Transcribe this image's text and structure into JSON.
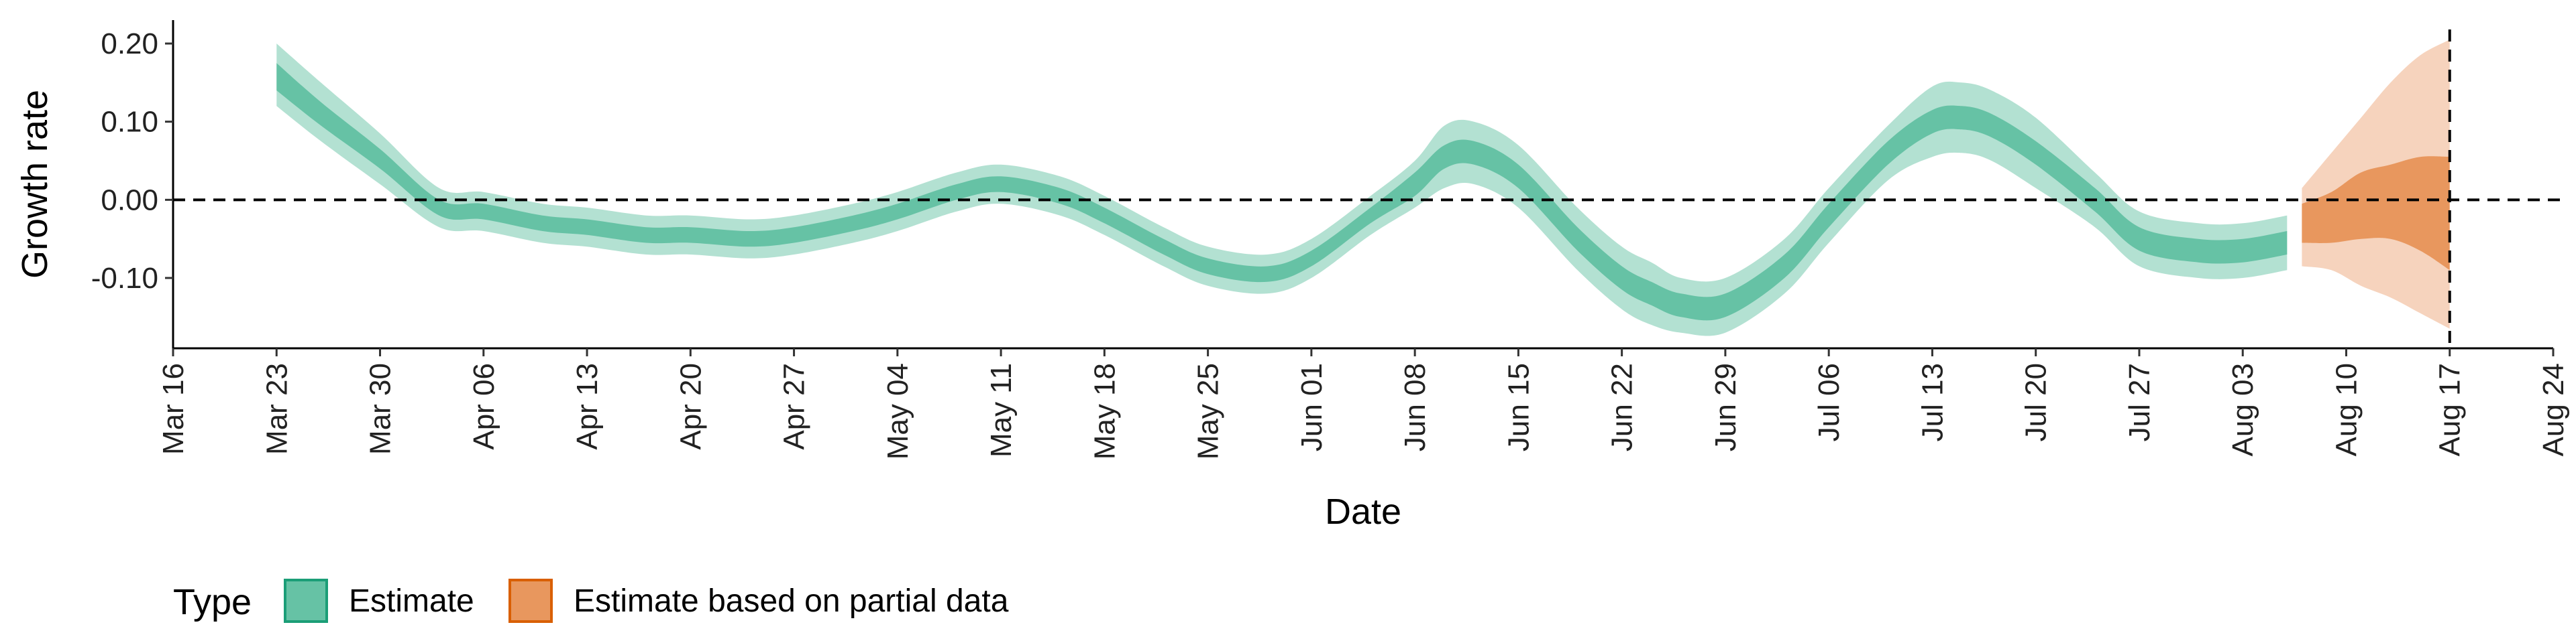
{
  "chart_data": {
    "type": "area",
    "title": "",
    "xlabel": "Date",
    "ylabel": "Growth rate",
    "xlim": [
      "2020-03-16",
      "2020-08-24"
    ],
    "ylim": [
      -0.19,
      0.23
    ],
    "x_ticks": [
      "Mar 16",
      "Mar 23",
      "Mar 30",
      "Apr 06",
      "Apr 13",
      "Apr 20",
      "Apr 27",
      "May 04",
      "May 11",
      "May 18",
      "May 25",
      "Jun 01",
      "Jun 08",
      "Jun 15",
      "Jun 22",
      "Jun 29",
      "Jul 06",
      "Jul 13",
      "Jul 20",
      "Jul 27",
      "Aug 03",
      "Aug 10",
      "Aug 17",
      "Aug 24"
    ],
    "x_tick_dates": [
      "2020-03-16",
      "2020-03-23",
      "2020-03-30",
      "2020-04-06",
      "2020-04-13",
      "2020-04-20",
      "2020-04-27",
      "2020-05-04",
      "2020-05-11",
      "2020-05-18",
      "2020-05-25",
      "2020-06-01",
      "2020-06-08",
      "2020-06-15",
      "2020-06-22",
      "2020-06-29",
      "2020-07-06",
      "2020-07-13",
      "2020-07-20",
      "2020-07-27",
      "2020-08-03",
      "2020-08-10",
      "2020-08-17",
      "2020-08-24"
    ],
    "y_ticks": [
      0.2,
      0.1,
      0.0,
      -0.1
    ],
    "y_tick_labels": [
      "0.20",
      "0.10",
      "0.00",
      "-0.10"
    ],
    "reference_hline": 0.0,
    "reference_vline": "2020-08-17",
    "grid": false,
    "legend": {
      "title": "Type",
      "position": "bottom-left",
      "entries": [
        "Estimate",
        "Estimate based on partial data"
      ]
    },
    "series": [
      {
        "name": "Estimate",
        "color_inner": "#66c2a5",
        "color_outer": "#b3e1d2",
        "border_color": "#1b9e77",
        "x": [
          "2020-03-23",
          "2020-03-26",
          "2020-03-30",
          "2020-04-03",
          "2020-04-06",
          "2020-04-10",
          "2020-04-13",
          "2020-04-17",
          "2020-04-20",
          "2020-04-24",
          "2020-04-27",
          "2020-05-01",
          "2020-05-04",
          "2020-05-08",
          "2020-05-11",
          "2020-05-15",
          "2020-05-18",
          "2020-05-22",
          "2020-05-25",
          "2020-05-29",
          "2020-06-01",
          "2020-06-05",
          "2020-06-08",
          "2020-06-10",
          "2020-06-12",
          "2020-06-15",
          "2020-06-19",
          "2020-06-22",
          "2020-06-24",
          "2020-06-26",
          "2020-06-29",
          "2020-07-03",
          "2020-07-06",
          "2020-07-10",
          "2020-07-13",
          "2020-07-15",
          "2020-07-17",
          "2020-07-20",
          "2020-07-24",
          "2020-07-27",
          "2020-07-31",
          "2020-08-03",
          "2020-08-06"
        ],
        "y": [
          0.16,
          0.11,
          0.05,
          -0.01,
          -0.015,
          -0.03,
          -0.035,
          -0.045,
          -0.045,
          -0.05,
          -0.045,
          -0.03,
          -0.015,
          0.01,
          0.02,
          0.005,
          -0.02,
          -0.06,
          -0.085,
          -0.095,
          -0.075,
          -0.02,
          0.02,
          0.055,
          0.06,
          0.03,
          -0.05,
          -0.1,
          -0.12,
          -0.135,
          -0.135,
          -0.085,
          -0.02,
          0.06,
          0.1,
          0.105,
          0.095,
          0.06,
          0.0,
          -0.05,
          -0.065,
          -0.065,
          -0.055
        ],
        "band_50": [
          [
            0.14,
            0.175
          ],
          [
            0.095,
            0.125
          ],
          [
            0.04,
            0.065
          ],
          [
            -0.02,
            0.0
          ],
          [
            -0.025,
            -0.005
          ],
          [
            -0.04,
            -0.02
          ],
          [
            -0.045,
            -0.025
          ],
          [
            -0.055,
            -0.035
          ],
          [
            -0.055,
            -0.035
          ],
          [
            -0.06,
            -0.04
          ],
          [
            -0.055,
            -0.035
          ],
          [
            -0.04,
            -0.02
          ],
          [
            -0.025,
            -0.005
          ],
          [
            0.0,
            0.02
          ],
          [
            0.01,
            0.03
          ],
          [
            -0.005,
            0.015
          ],
          [
            -0.03,
            -0.01
          ],
          [
            -0.07,
            -0.05
          ],
          [
            -0.095,
            -0.075
          ],
          [
            -0.105,
            -0.085
          ],
          [
            -0.085,
            -0.065
          ],
          [
            -0.03,
            -0.01
          ],
          [
            0.005,
            0.035
          ],
          [
            0.04,
            0.07
          ],
          [
            0.045,
            0.075
          ],
          [
            0.015,
            0.045
          ],
          [
            -0.065,
            -0.035
          ],
          [
            -0.115,
            -0.085
          ],
          [
            -0.135,
            -0.105
          ],
          [
            -0.15,
            -0.12
          ],
          [
            -0.15,
            -0.12
          ],
          [
            -0.1,
            -0.07
          ],
          [
            -0.035,
            -0.005
          ],
          [
            0.045,
            0.075
          ],
          [
            0.085,
            0.115
          ],
          [
            0.09,
            0.12
          ],
          [
            0.08,
            0.11
          ],
          [
            0.045,
            0.075
          ],
          [
            -0.015,
            0.015
          ],
          [
            -0.065,
            -0.035
          ],
          [
            -0.08,
            -0.05
          ],
          [
            -0.08,
            -0.05
          ],
          [
            -0.07,
            -0.04
          ]
        ],
        "band_90": [
          [
            0.12,
            0.2
          ],
          [
            0.075,
            0.15
          ],
          [
            0.02,
            0.085
          ],
          [
            -0.035,
            0.015
          ],
          [
            -0.04,
            0.01
          ],
          [
            -0.055,
            -0.005
          ],
          [
            -0.06,
            -0.01
          ],
          [
            -0.07,
            -0.02
          ],
          [
            -0.07,
            -0.02
          ],
          [
            -0.075,
            -0.025
          ],
          [
            -0.07,
            -0.02
          ],
          [
            -0.055,
            -0.005
          ],
          [
            -0.04,
            0.01
          ],
          [
            -0.015,
            0.035
          ],
          [
            -0.005,
            0.045
          ],
          [
            -0.02,
            0.03
          ],
          [
            -0.045,
            0.005
          ],
          [
            -0.085,
            -0.035
          ],
          [
            -0.11,
            -0.06
          ],
          [
            -0.12,
            -0.07
          ],
          [
            -0.1,
            -0.05
          ],
          [
            -0.045,
            0.005
          ],
          [
            -0.01,
            0.05
          ],
          [
            0.015,
            0.095
          ],
          [
            0.02,
            0.1
          ],
          [
            -0.01,
            0.07
          ],
          [
            -0.09,
            -0.01
          ],
          [
            -0.14,
            -0.06
          ],
          [
            -0.16,
            -0.08
          ],
          [
            -0.17,
            -0.1
          ],
          [
            -0.17,
            -0.1
          ],
          [
            -0.12,
            -0.05
          ],
          [
            -0.055,
            0.015
          ],
          [
            0.025,
            0.095
          ],
          [
            0.055,
            0.145
          ],
          [
            0.06,
            0.15
          ],
          [
            0.05,
            0.14
          ],
          [
            0.015,
            0.105
          ],
          [
            -0.035,
            0.035
          ],
          [
            -0.085,
            -0.015
          ],
          [
            -0.1,
            -0.03
          ],
          [
            -0.1,
            -0.03
          ],
          [
            -0.09,
            -0.02
          ]
        ]
      },
      {
        "name": "Estimate based on partial data",
        "color_inner": "#e8975e",
        "color_outer": "#f6d3bd",
        "border_color": "#d95f02",
        "x": [
          "2020-08-07",
          "2020-08-09",
          "2020-08-11",
          "2020-08-13",
          "2020-08-15",
          "2020-08-17"
        ],
        "y": [
          -0.02,
          -0.015,
          -0.005,
          0.005,
          0.005,
          -0.015
        ],
        "band_50": [
          [
            -0.055,
            -0.005
          ],
          [
            -0.055,
            0.01
          ],
          [
            -0.05,
            0.035
          ],
          [
            -0.05,
            0.045
          ],
          [
            -0.065,
            0.055
          ],
          [
            -0.09,
            0.055
          ]
        ],
        "band_90": [
          [
            -0.085,
            0.015
          ],
          [
            -0.09,
            0.06
          ],
          [
            -0.11,
            0.105
          ],
          [
            -0.125,
            0.15
          ],
          [
            -0.145,
            0.185
          ],
          [
            -0.165,
            0.205
          ]
        ]
      }
    ]
  }
}
